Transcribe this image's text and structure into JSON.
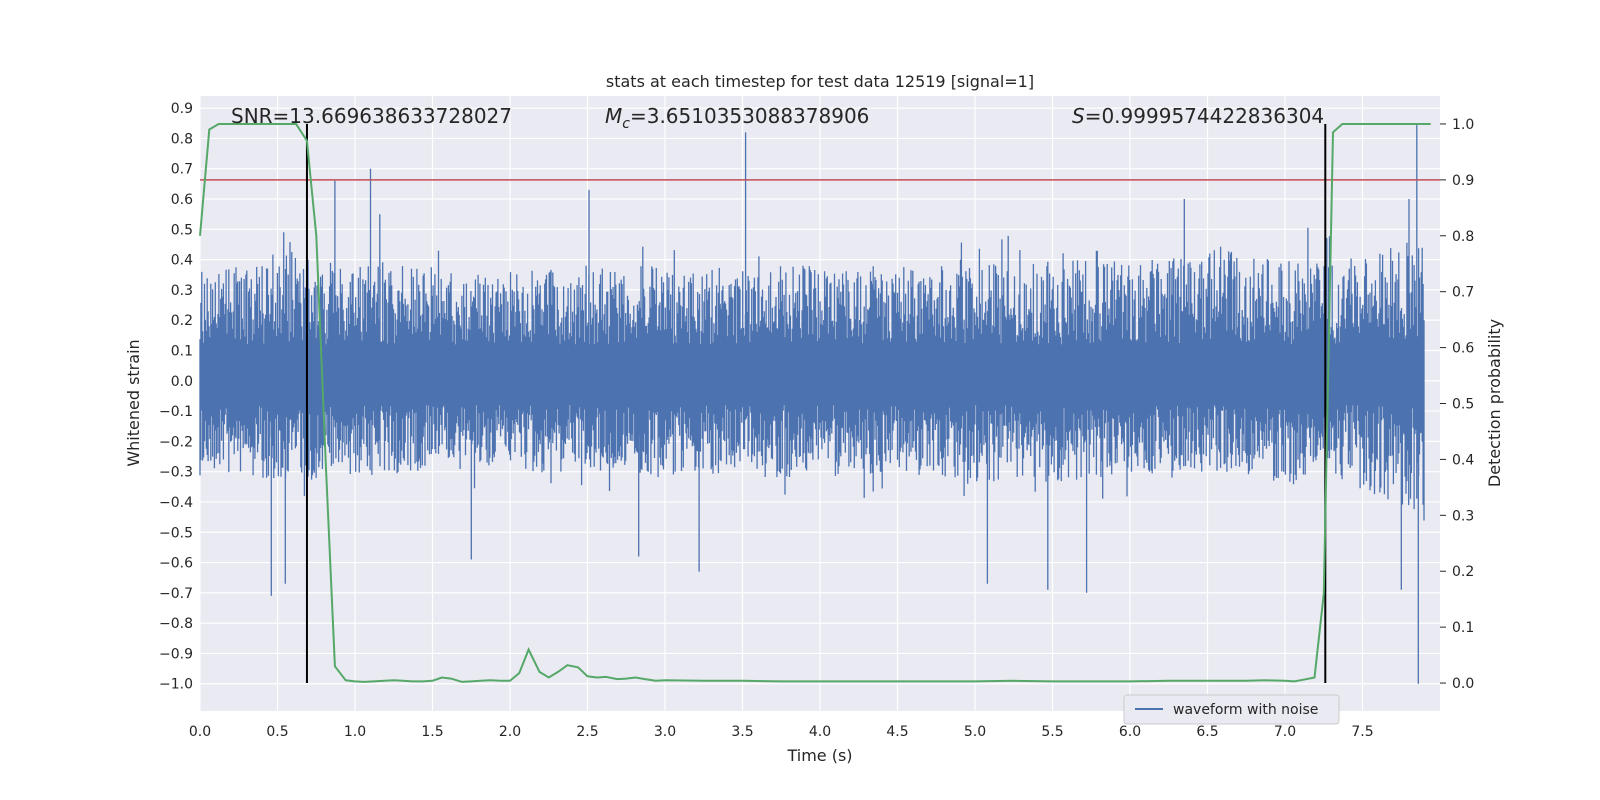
{
  "chart_data": {
    "type": "line",
    "title": "stats at each timestep for test data 12519 [signal=1]",
    "xlabel": "Time (s)",
    "ylabel": "Whitened strain",
    "y2label": "Detection probability",
    "xlim": [
      0.0,
      8.0
    ],
    "ylim": [
      -1.09,
      0.94
    ],
    "y2lim": [
      -0.05,
      1.05
    ],
    "x_ticks": [
      0.0,
      0.5,
      1.0,
      1.5,
      2.0,
      2.5,
      3.0,
      3.5,
      4.0,
      4.5,
      5.0,
      5.5,
      6.0,
      6.5,
      7.0,
      7.5
    ],
    "x_tick_labels": [
      "0.0",
      "0.5",
      "1.0",
      "1.5",
      "2.0",
      "2.5",
      "3.0",
      "3.5",
      "4.0",
      "4.5",
      "5.0",
      "5.5",
      "6.0",
      "6.5",
      "7.0",
      "7.5"
    ],
    "y_ticks": [
      0.9,
      0.8,
      0.7,
      0.6,
      0.5,
      0.4,
      0.3,
      0.2,
      0.1,
      0.0,
      -0.1,
      -0.2,
      -0.3,
      -0.4,
      -0.5,
      -0.6,
      -0.7,
      -0.8,
      -0.9,
      -1.0
    ],
    "y_tick_labels": [
      "0.9",
      "0.8",
      "0.7",
      "0.6",
      "0.5",
      "0.4",
      "0.3",
      "0.2",
      "0.1",
      "0.0",
      "−0.1",
      "−0.2",
      "−0.3",
      "−0.4",
      "−0.5",
      "−0.6",
      "−0.7",
      "−0.8",
      "−0.9",
      "−1.0"
    ],
    "y2_ticks": [
      1.0,
      0.9,
      0.8,
      0.7,
      0.6,
      0.5,
      0.4,
      0.3,
      0.2,
      0.1,
      0.0
    ],
    "y2_tick_labels": [
      "1.0",
      "0.9",
      "0.8",
      "0.7",
      "0.6",
      "0.5",
      "0.4",
      "0.3",
      "0.2",
      "0.1",
      "0.0"
    ],
    "annotations": {
      "snr": "SNR=13.669638633728027",
      "mc_symbol": "M",
      "mc_sub": "c",
      "mc_value": "=3.6510353088378906",
      "s_symbol": "S",
      "s_value": "=0.9999574422836304"
    },
    "legend": {
      "placement": "lower-right",
      "entries": [
        "waveform with noise"
      ]
    },
    "grid": true,
    "colors": {
      "waveform": "#4c72b0",
      "probability": "#55a868",
      "threshold": "#c44e52",
      "boundary": "#000000",
      "plot_bg": "#eaeaf2",
      "grid": "#ffffff"
    },
    "threshold": 0.9,
    "boundaries": [
      0.69,
      7.26
    ],
    "waveform_envelope": {
      "x": [
        0.0,
        0.5,
        1.0,
        1.5,
        2.0,
        2.5,
        3.0,
        3.5,
        4.0,
        4.5,
        5.0,
        5.5,
        6.0,
        6.5,
        7.0,
        7.5,
        7.9
      ],
      "upper": [
        0.38,
        0.42,
        0.38,
        0.38,
        0.36,
        0.38,
        0.38,
        0.38,
        0.38,
        0.38,
        0.38,
        0.4,
        0.4,
        0.44,
        0.4,
        0.4,
        0.52
      ],
      "lower": [
        -0.28,
        -0.34,
        -0.32,
        -0.3,
        -0.3,
        -0.3,
        -0.32,
        -0.32,
        -0.32,
        -0.3,
        -0.34,
        -0.34,
        -0.32,
        -0.32,
        -0.34,
        -0.36,
        -0.44
      ],
      "spikes": [
        {
          "x": 0.46,
          "y": -0.71
        },
        {
          "x": 0.54,
          "y": 0.49
        },
        {
          "x": 0.55,
          "y": -0.67
        },
        {
          "x": 0.87,
          "y": 0.66
        },
        {
          "x": 1.1,
          "y": 0.7
        },
        {
          "x": 1.16,
          "y": 0.55
        },
        {
          "x": 1.75,
          "y": -0.59
        },
        {
          "x": 2.51,
          "y": 0.63
        },
        {
          "x": 2.83,
          "y": -0.58
        },
        {
          "x": 3.22,
          "y": -0.63
        },
        {
          "x": 3.52,
          "y": 0.82
        },
        {
          "x": 5.08,
          "y": -0.67
        },
        {
          "x": 5.47,
          "y": -0.69
        },
        {
          "x": 5.72,
          "y": -0.7
        },
        {
          "x": 6.35,
          "y": 0.6
        },
        {
          "x": 7.26,
          "y": -0.6
        },
        {
          "x": 7.75,
          "y": -0.69
        },
        {
          "x": 7.85,
          "y": 0.85
        },
        {
          "x": 7.86,
          "y": -1.0
        },
        {
          "x": 7.8,
          "y": 0.6
        }
      ]
    },
    "series": [
      {
        "name": "",
        "axis": "right",
        "x": [
          0.0,
          0.06,
          0.12,
          0.19,
          0.25,
          0.31,
          0.37,
          0.44,
          0.5,
          0.56,
          0.62,
          0.69,
          0.75,
          0.81,
          0.87,
          0.94,
          1.0,
          1.06,
          1.12,
          1.19,
          1.25,
          1.31,
          1.37,
          1.44,
          1.5,
          1.56,
          1.62,
          1.69,
          1.75,
          1.81,
          1.87,
          1.94,
          2.0,
          2.06,
          2.12,
          2.19,
          2.25,
          2.31,
          2.37,
          2.44,
          2.5,
          2.56,
          2.62,
          2.69,
          2.75,
          2.81,
          2.87,
          2.94,
          3.0,
          3.25,
          3.5,
          3.75,
          4.0,
          4.25,
          4.5,
          4.75,
          5.0,
          5.25,
          5.5,
          5.75,
          6.0,
          6.25,
          6.5,
          6.75,
          6.87,
          7.0,
          7.06,
          7.12,
          7.19,
          7.25,
          7.31,
          7.37,
          7.44,
          7.5,
          7.56,
          7.62,
          7.69,
          7.75,
          7.81,
          7.87,
          7.94
        ],
        "values": [
          0.8,
          0.99,
          1.0,
          1.0,
          1.0,
          1.0,
          1.0,
          1.0,
          1.0,
          1.0,
          1.0,
          0.97,
          0.8,
          0.4,
          0.03,
          0.005,
          0.003,
          0.002,
          0.003,
          0.004,
          0.005,
          0.004,
          0.003,
          0.003,
          0.004,
          0.01,
          0.008,
          0.002,
          0.003,
          0.004,
          0.005,
          0.004,
          0.004,
          0.018,
          0.06,
          0.02,
          0.01,
          0.02,
          0.032,
          0.028,
          0.012,
          0.01,
          0.011,
          0.007,
          0.008,
          0.01,
          0.007,
          0.004,
          0.005,
          0.004,
          0.004,
          0.003,
          0.003,
          0.003,
          0.003,
          0.003,
          0.003,
          0.004,
          0.003,
          0.003,
          0.003,
          0.004,
          0.004,
          0.004,
          0.005,
          0.004,
          0.003,
          0.006,
          0.01,
          0.16,
          0.985,
          1.0,
          1.0,
          1.0,
          1.0,
          1.0,
          1.0,
          1.0,
          1.0,
          1.0,
          1.0
        ]
      }
    ]
  }
}
